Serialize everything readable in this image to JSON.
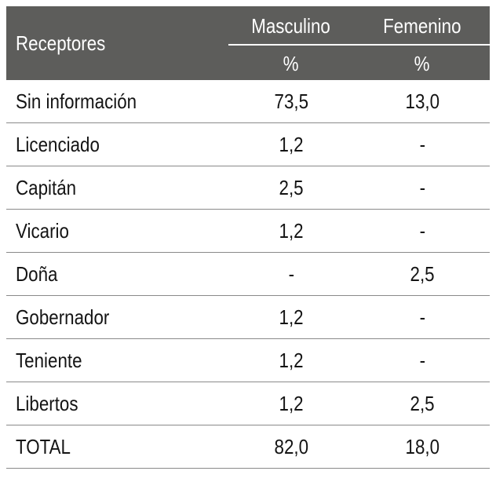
{
  "table": {
    "header": {
      "receptores": "Receptores",
      "masculino": "Masculino",
      "femenino": "Femenino",
      "pct_masculino": "%",
      "pct_femenino": "%"
    },
    "rows": [
      {
        "label": "Sin información",
        "masculino": "73,5",
        "femenino": "13,0"
      },
      {
        "label": "Licenciado",
        "masculino": "1,2",
        "femenino": "-"
      },
      {
        "label": "Capitán",
        "masculino": "2,5",
        "femenino": "-"
      },
      {
        "label": "Vicario",
        "masculino": "1,2",
        "femenino": "-"
      },
      {
        "label": "Doña",
        "masculino": "-",
        "femenino": "2,5"
      },
      {
        "label": "Gobernador",
        "masculino": "1,2",
        "femenino": "-"
      },
      {
        "label": "Teniente",
        "masculino": "1,2",
        "femenino": "-"
      },
      {
        "label": "Libertos",
        "masculino": "1,2",
        "femenino": "2,5"
      },
      {
        "label": "TOTAL",
        "masculino": "82,0",
        "femenino": "18,0"
      }
    ]
  },
  "colors": {
    "header_bg": "#5d5d5b",
    "header_text": "#ffffff",
    "rule": "#8a8a8a",
    "text": "#141414"
  }
}
